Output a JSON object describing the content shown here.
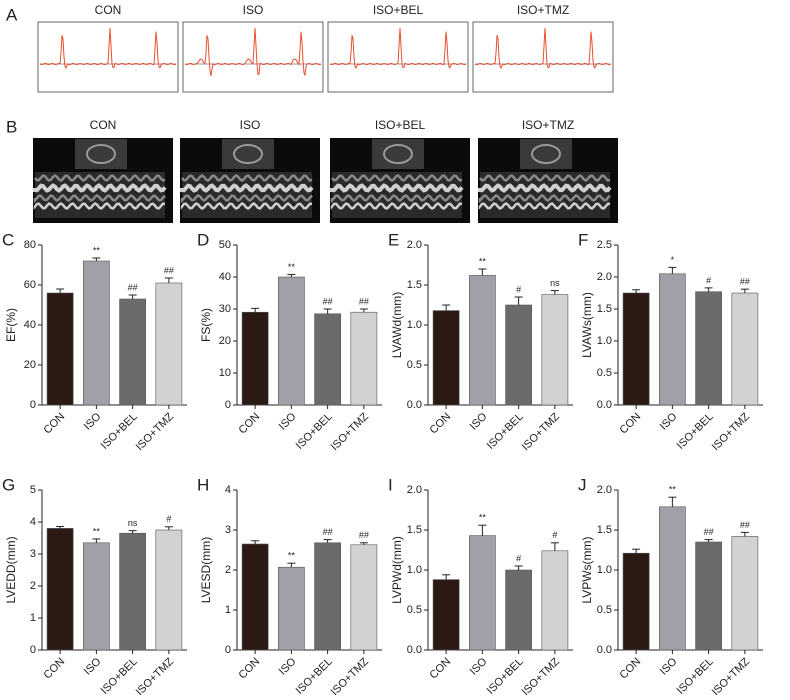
{
  "panel_a": {
    "label": "A",
    "groups": [
      "CON",
      "ISO",
      "ISO+BEL",
      "ISO+TMZ"
    ]
  },
  "panel_b": {
    "label": "B",
    "groups": [
      "CON",
      "ISO",
      "ISO+BEL",
      "ISO+TMZ"
    ]
  },
  "chart_data": [
    {
      "type": "bar",
      "panel": "C",
      "ylabel": "EF(%)",
      "categories": [
        "CON",
        "ISO",
        "ISO+BEL",
        "ISO+TMZ"
      ],
      "values": [
        56,
        72,
        53,
        61
      ],
      "errors": [
        2,
        1.5,
        2,
        2.5
      ],
      "annotations": [
        null,
        "**",
        "##",
        "##"
      ],
      "colors": [
        "#2b1a14",
        "#a0a0a8",
        "#6b6b6b",
        "#d2d2d2"
      ],
      "ylim": [
        0,
        80
      ],
      "yticks": [
        0,
        20,
        40,
        60,
        80
      ]
    },
    {
      "type": "bar",
      "panel": "D",
      "ylabel": "FS(%)",
      "categories": [
        "CON",
        "ISO",
        "ISO+BEL",
        "ISO+TMZ"
      ],
      "values": [
        29,
        40,
        28.5,
        29
      ],
      "errors": [
        1.2,
        0.8,
        1.5,
        1
      ],
      "annotations": [
        null,
        "**",
        "##",
        "##"
      ],
      "colors": [
        "#2b1a14",
        "#a0a0a8",
        "#6b6b6b",
        "#d2d2d2"
      ],
      "ylim": [
        0,
        50
      ],
      "yticks": [
        0,
        10,
        20,
        30,
        40,
        50
      ]
    },
    {
      "type": "bar",
      "panel": "E",
      "ylabel": "LVAWd(mm)",
      "categories": [
        "CON",
        "ISO",
        "ISO+BEL",
        "ISO+TMZ"
      ],
      "values": [
        1.18,
        1.62,
        1.25,
        1.38
      ],
      "errors": [
        0.07,
        0.08,
        0.1,
        0.05
      ],
      "annotations": [
        null,
        "**",
        "#",
        "ns"
      ],
      "colors": [
        "#2b1a14",
        "#a0a0a8",
        "#6b6b6b",
        "#d2d2d2"
      ],
      "ylim": [
        0,
        2
      ],
      "yticks": [
        {
          "value": 0,
          "label": "0.0"
        },
        0.5,
        {
          "value": 1,
          "label": "1.0"
        },
        1.5,
        {
          "value": 2,
          "label": "2.0"
        }
      ]
    },
    {
      "type": "bar",
      "panel": "F",
      "ylabel": "LVAWs(mm)",
      "categories": [
        "CON",
        "ISO",
        "ISO+BEL",
        "ISO+TMZ"
      ],
      "values": [
        1.75,
        2.05,
        1.77,
        1.75
      ],
      "errors": [
        0.05,
        0.1,
        0.06,
        0.06
      ],
      "annotations": [
        null,
        "*",
        "#",
        "##"
      ],
      "colors": [
        "#2b1a14",
        "#a0a0a8",
        "#6b6b6b",
        "#d2d2d2"
      ],
      "ylim": [
        0,
        2.5
      ],
      "yticks": [
        {
          "value": 0,
          "label": "0.0"
        },
        0.5,
        {
          "value": 1,
          "label": "1.0"
        },
        1.5,
        {
          "value": 2,
          "label": "2.0"
        },
        2.5
      ]
    },
    {
      "type": "bar",
      "panel": "G",
      "ylabel": "LVEDD(mm)",
      "categories": [
        "CON",
        "ISO",
        "ISO+BEL",
        "ISO+TMZ"
      ],
      "values": [
        3.8,
        3.35,
        3.65,
        3.75
      ],
      "errors": [
        0.06,
        0.12,
        0.08,
        0.1
      ],
      "annotations": [
        null,
        "**",
        "ns",
        "#"
      ],
      "colors": [
        "#2b1a14",
        "#a0a0a8",
        "#6b6b6b",
        "#d2d2d2"
      ],
      "ylim": [
        0,
        5
      ],
      "yticks": [
        0,
        1,
        2,
        3,
        4,
        5
      ]
    },
    {
      "type": "bar",
      "panel": "H",
      "ylabel": "LVESD(mm)",
      "categories": [
        "CON",
        "ISO",
        "ISO+BEL",
        "ISO+TMZ"
      ],
      "values": [
        2.65,
        2.07,
        2.68,
        2.63
      ],
      "errors": [
        0.08,
        0.1,
        0.08,
        0.05
      ],
      "annotations": [
        null,
        "**",
        "##",
        "##"
      ],
      "colors": [
        "#2b1a14",
        "#a0a0a8",
        "#6b6b6b",
        "#d2d2d2"
      ],
      "ylim": [
        0,
        4
      ],
      "yticks": [
        0,
        1,
        2,
        3,
        4
      ]
    },
    {
      "type": "bar",
      "panel": "I",
      "ylabel": "LVPWd(mm)",
      "categories": [
        "CON",
        "ISO",
        "ISO+BEL",
        "ISO+TMZ"
      ],
      "values": [
        0.88,
        1.43,
        1.0,
        1.24
      ],
      "errors": [
        0.06,
        0.13,
        0.05,
        0.1
      ],
      "annotations": [
        null,
        "**",
        "#",
        "#"
      ],
      "colors": [
        "#2b1a14",
        "#a0a0a8",
        "#6b6b6b",
        "#d2d2d2"
      ],
      "ylim": [
        0,
        2
      ],
      "yticks": [
        {
          "value": 0,
          "label": "0.0"
        },
        0.5,
        {
          "value": 1,
          "label": "1.0"
        },
        1.5,
        {
          "value": 2,
          "label": "2.0"
        }
      ]
    },
    {
      "type": "bar",
      "panel": "J",
      "ylabel": "LVPWs(mm)",
      "categories": [
        "CON",
        "ISO",
        "ISO+BEL",
        "ISO+TMZ"
      ],
      "values": [
        1.21,
        1.79,
        1.35,
        1.42
      ],
      "errors": [
        0.05,
        0.12,
        0.03,
        0.05
      ],
      "annotations": [
        null,
        "**",
        "##",
        "##"
      ],
      "colors": [
        "#2b1a14",
        "#a0a0a8",
        "#6b6b6b",
        "#d2d2d2"
      ],
      "ylim": [
        0,
        2
      ],
      "yticks": [
        {
          "value": 0,
          "label": "0.0"
        },
        0.5,
        {
          "value": 1,
          "label": "1.0"
        },
        1.5,
        {
          "value": 2,
          "label": "2.0"
        }
      ]
    }
  ]
}
